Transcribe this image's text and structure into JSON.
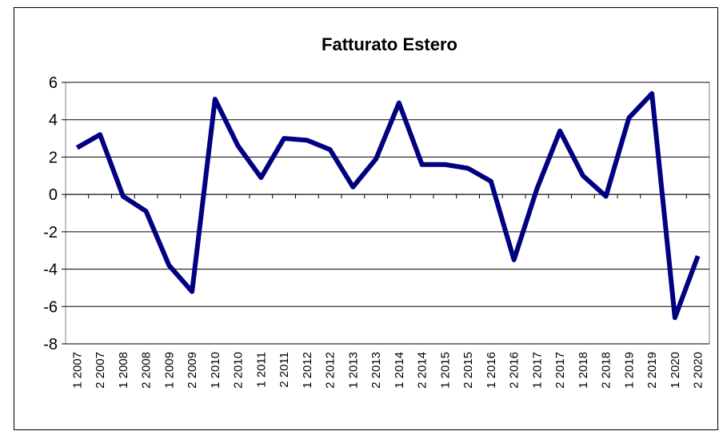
{
  "chart_data": {
    "type": "line",
    "title": "Fatturato Estero",
    "categories": [
      "1 2007",
      "2 2007",
      "1 2008",
      "2 2008",
      "1 2009",
      "2 2009",
      "1 2010",
      "2 2010",
      "1 2011",
      "2 2011",
      "1 2012",
      "2 2012",
      "1 2013",
      "2 2013",
      "1 2014",
      "2 2014",
      "1 2015",
      "2 2015",
      "1 2016",
      "2 2016",
      "1 2017",
      "2 2017",
      "1 2018",
      "2 2018",
      "1 2019",
      "2 2019",
      "1 2020",
      "2 2020"
    ],
    "values": [
      2.5,
      3.2,
      -0.1,
      -0.9,
      -3.8,
      -5.2,
      5.1,
      2.6,
      0.9,
      3.0,
      2.9,
      2.4,
      0.4,
      1.9,
      4.9,
      1.6,
      1.6,
      1.4,
      0.7,
      -3.5,
      0.3,
      3.4,
      1.0,
      -0.1,
      4.1,
      5.4,
      -6.6,
      -3.3
    ],
    "color": "#000080",
    "ylim": [
      -8,
      6
    ],
    "yticks": [
      -8,
      -6,
      -4,
      -2,
      0,
      2,
      4,
      6
    ],
    "grid": true
  }
}
